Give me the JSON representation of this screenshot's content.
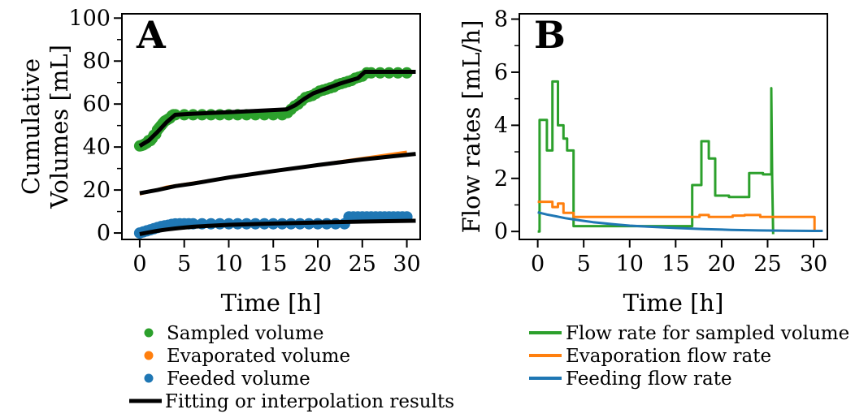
{
  "colors": {
    "sampled": "#2ca02c",
    "evaporated": "#ff7f0e",
    "feeded": "#1f77b4",
    "fit": "#000000"
  },
  "chart_data": [
    {
      "panel": "A",
      "type": "scatter",
      "xlabel": "Time [h]",
      "ylabel_lines": [
        "Cumulative",
        "Volumes [mL]"
      ],
      "xlim": [
        -2,
        31.5
      ],
      "ylim": [
        -3,
        102
      ],
      "xticks": [
        0,
        5,
        10,
        15,
        20,
        25,
        30
      ],
      "yticks": [
        0,
        20,
        40,
        60,
        80,
        100
      ],
      "yminor": [
        10,
        30,
        50,
        70,
        90
      ],
      "grid": false,
      "legend_position": "below",
      "series": [
        {
          "name": "Sampled volume",
          "kind": "scatter",
          "color": "#2ca02c",
          "x": [
            0,
            0.2,
            0.4,
            0.6,
            0.8,
            1.0,
            1.2,
            1.4,
            1.6,
            1.8,
            2.0,
            2.2,
            2.4,
            2.6,
            2.8,
            3.0,
            3.2,
            3.4,
            3.6,
            3.8,
            4.0,
            5,
            6,
            7,
            8,
            9,
            10,
            11,
            12,
            13,
            14,
            15,
            16,
            16.6,
            17.0,
            17.4,
            17.8,
            18.2,
            18.6,
            19.0,
            19.4,
            19.8,
            20.2,
            20.6,
            21.0,
            21.4,
            21.8,
            22.2,
            22.6,
            23.0,
            23.4,
            23.8,
            24.2,
            24.6,
            25.0,
            25.5,
            26,
            27,
            28,
            29,
            30
          ],
          "y": [
            40.5,
            40.7,
            41.0,
            41.5,
            42.0,
            43.0,
            43.0,
            44.0,
            45.5,
            46.0,
            48.0,
            49.0,
            50.0,
            51.0,
            52.0,
            52.5,
            53.0,
            53.5,
            54.5,
            55.0,
            55.0,
            55,
            55,
            55,
            55,
            55,
            55,
            55,
            55,
            55,
            55,
            55,
            55,
            56.0,
            57.5,
            59.0,
            60.0,
            61.5,
            63.0,
            63.5,
            64.0,
            65.0,
            66.0,
            66.5,
            67.0,
            67.5,
            68.0,
            69.0,
            69.5,
            70.0,
            70.5,
            71.0,
            72.0,
            72.5,
            73.0,
            74.5,
            74.5,
            74.5,
            74.5,
            74.5,
            74.5
          ]
        },
        {
          "name": "Evaporated volume",
          "kind": "line",
          "color": "#ff7f0e",
          "x": [
            0,
            1,
            2,
            3,
            5,
            10,
            15,
            20,
            25,
            30
          ],
          "y": [
            18.0,
            19.0,
            20.3,
            21.5,
            22.8,
            25.8,
            28.8,
            31.8,
            34.8,
            37.8
          ]
        },
        {
          "name": "Feeded volume",
          "kind": "scatter",
          "color": "#1f77b4",
          "x": [
            0,
            0.4,
            0.8,
            1.2,
            1.6,
            2.0,
            2.4,
            2.8,
            3.2,
            3.6,
            4.0,
            4.5,
            5,
            5.5,
            6,
            7,
            8,
            9,
            10,
            11,
            12,
            13,
            14,
            15,
            16,
            17,
            18,
            19,
            20,
            21,
            22,
            23,
            23.5,
            24,
            24.5,
            25,
            25.5,
            26,
            26.5,
            27,
            27.5,
            28,
            28.5,
            29,
            29.5,
            30
          ],
          "y": [
            0,
            0.5,
            1.0,
            1.5,
            2.0,
            2.5,
            3.0,
            3.3,
            3.6,
            4.0,
            4.2,
            4.3,
            4.3,
            4.3,
            4.3,
            4.3,
            4.3,
            4.3,
            4.3,
            4.3,
            4.3,
            4.3,
            4.3,
            4.3,
            4.3,
            4.3,
            4.3,
            4.3,
            4.3,
            4.3,
            4.3,
            4.3,
            7.5,
            7.5,
            7.5,
            7.5,
            7.5,
            7.5,
            7.5,
            7.5,
            7.5,
            7.5,
            7.5,
            7.5,
            7.5,
            7.5
          ]
        },
        {
          "name": "Fitting or interpolation results",
          "kind": "line",
          "color": "#000000",
          "segments": [
            {
              "x": [
                0,
                1,
                2,
                3,
                4,
                6,
                10,
                14,
                16.5,
                17.5,
                18.5,
                19.5,
                20.5,
                21.5,
                22.5,
                23.5,
                24.5,
                25.3,
                28,
                31
              ],
              "y": [
                40.5,
                43.0,
                47.0,
                51.5,
                55.0,
                55.5,
                56.2,
                57.0,
                57.5,
                59.5,
                62.5,
                65.0,
                66.5,
                68.0,
                69.5,
                70.8,
                72.0,
                75.0,
                75.0,
                75.0
              ]
            },
            {
              "x": [
                0,
                2,
                4,
                6,
                10,
                15,
                20,
                25,
                31
              ],
              "y": [
                18.5,
                20.0,
                21.8,
                23.0,
                25.8,
                28.8,
                31.6,
                34.2,
                36.8
              ]
            },
            {
              "x": [
                0,
                1,
                2,
                3,
                4,
                5,
                6,
                8,
                10,
                15,
                20,
                25,
                31
              ],
              "y": [
                -0.5,
                0.3,
                1.0,
                1.6,
                2.1,
                2.5,
                2.9,
                3.4,
                3.8,
                4.4,
                4.9,
                5.3,
                5.7
              ]
            }
          ]
        }
      ]
    },
    {
      "panel": "B",
      "type": "line",
      "xlabel": "Time [h]",
      "ylabel": "Flow rates [mL/h]",
      "xlim": [
        -2,
        31.5
      ],
      "ylim": [
        -0.3,
        8.2
      ],
      "xticks": [
        0,
        5,
        10,
        15,
        20,
        25,
        30
      ],
      "yticks": [
        0,
        2,
        4,
        6,
        8
      ],
      "yminor": [
        1,
        3,
        5,
        7
      ],
      "grid": false,
      "legend_position": "below",
      "series": [
        {
          "name": "Flow rate for sampled volume",
          "color": "#2ca02c",
          "x": [
            0,
            0.2,
            0.2,
            1.0,
            1.0,
            1.6,
            1.6,
            2.2,
            2.2,
            2.8,
            2.8,
            3.2,
            3.2,
            3.9,
            3.9,
            16.8,
            16.8,
            17.8,
            17.8,
            18.6,
            18.6,
            19.3,
            19.3,
            20.8,
            20.8,
            23.0,
            23.0,
            24.5,
            24.5,
            25.4,
            25.4,
            25.5,
            25.6
          ],
          "y": [
            0,
            0,
            4.2,
            4.2,
            3.05,
            3.05,
            5.65,
            5.65,
            4.0,
            4.0,
            3.5,
            3.5,
            3.05,
            3.05,
            0.2,
            0.2,
            1.75,
            1.75,
            3.4,
            3.4,
            2.75,
            2.75,
            1.35,
            1.35,
            1.3,
            1.3,
            2.2,
            2.2,
            2.15,
            2.15,
            5.4,
            2.0,
            -0.1
          ]
        },
        {
          "name": "Evaporation flow rate",
          "color": "#ff7f0e",
          "x": [
            0,
            1.6,
            1.6,
            2.2,
            2.2,
            2.8,
            2.8,
            3.9,
            3.9,
            17.6,
            17.6,
            18.6,
            18.6,
            21.2,
            21.2,
            22.5,
            22.5,
            24.2,
            24.2,
            30.1,
            30.1
          ],
          "y": [
            1.12,
            1.12,
            0.92,
            0.92,
            1.05,
            1.05,
            0.7,
            0.7,
            0.55,
            0.55,
            0.62,
            0.62,
            0.55,
            0.55,
            0.6,
            0.6,
            0.62,
            0.62,
            0.55,
            0.55,
            0.0
          ]
        },
        {
          "name": "Feeding flow rate",
          "color": "#1f77b4",
          "x": [
            0,
            1,
            2,
            3,
            4,
            5,
            6,
            8,
            10,
            12,
            15,
            18,
            21,
            24,
            27,
            30,
            31
          ],
          "y": [
            0.72,
            0.64,
            0.57,
            0.5,
            0.45,
            0.4,
            0.35,
            0.28,
            0.22,
            0.18,
            0.13,
            0.09,
            0.06,
            0.04,
            0.03,
            0.02,
            0.02
          ]
        }
      ]
    }
  ]
}
